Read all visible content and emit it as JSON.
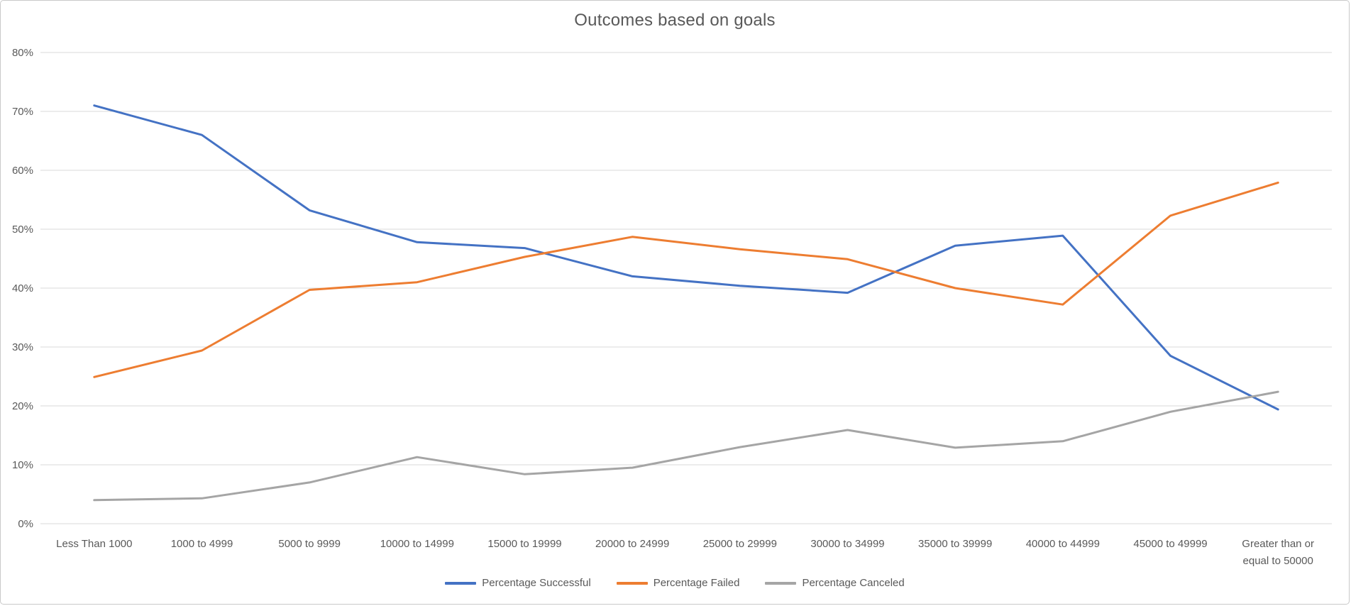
{
  "chart_data": {
    "type": "line",
    "title": "Outcomes based on goals",
    "categories": [
      "Less Than 1000",
      "1000 to 4999",
      "5000 to 9999",
      "10000 to 14999",
      "15000 to 19999",
      "20000 to 24999",
      "25000 to 29999",
      "30000 to 34999",
      "35000 to 39999",
      "40000 to 44999",
      "45000 to 49999",
      "Greater than or equal to 50000"
    ],
    "series": [
      {
        "name": "Percentage Successful",
        "color": "#4472C4",
        "values": [
          71.0,
          66.0,
          53.2,
          47.8,
          46.8,
          42.0,
          40.4,
          39.2,
          47.2,
          48.9,
          28.5,
          19.4
        ]
      },
      {
        "name": "Percentage Failed",
        "color": "#ED7D31",
        "values": [
          24.9,
          29.4,
          39.7,
          41.0,
          45.3,
          48.7,
          46.6,
          44.9,
          40.0,
          37.2,
          52.3,
          57.9
        ]
      },
      {
        "name": "Percentage Canceled",
        "color": "#A5A5A5",
        "values": [
          4.0,
          4.3,
          7.0,
          11.3,
          8.4,
          9.5,
          13.0,
          15.9,
          12.9,
          14.0,
          19.0,
          22.4
        ]
      }
    ],
    "y_ticks": [
      "0%",
      "10%",
      "20%",
      "30%",
      "40%",
      "50%",
      "60%",
      "70%",
      "80%"
    ],
    "ylim": [
      0,
      80
    ],
    "grid": true,
    "legend_position": "bottom",
    "gridline_color": "#d9d9d9",
    "text_color": "#595959"
  }
}
